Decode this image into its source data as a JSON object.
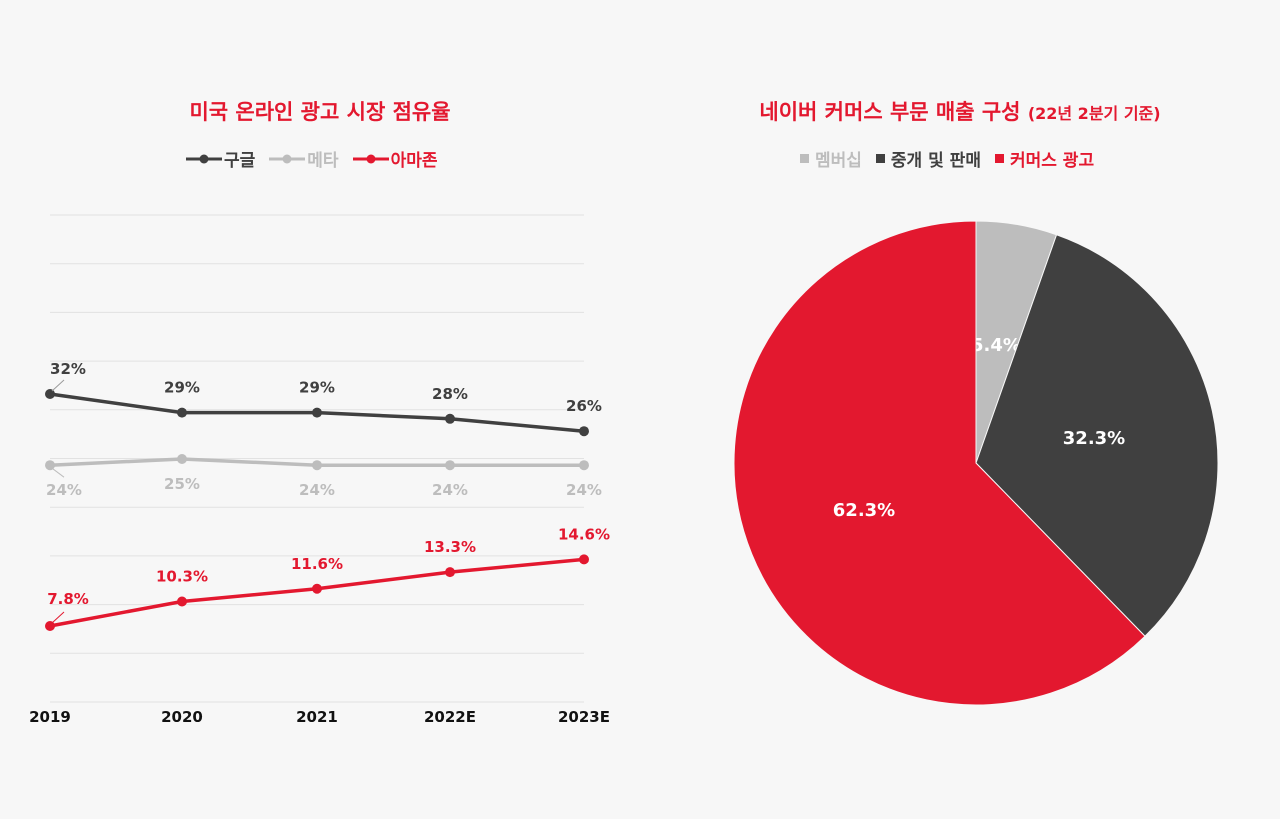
{
  "chart_data": [
    {
      "type": "line",
      "title": "미국 온라인 광고 시장 점유율",
      "categories": [
        "2019",
        "2020",
        "2021",
        "2022E",
        "2023E"
      ],
      "series": [
        {
          "name": "구글",
          "color": "#404040",
          "values": [
            32,
            29,
            29,
            28,
            26
          ],
          "labels": [
            "32%",
            "29%",
            "29%",
            "28%",
            "26%"
          ]
        },
        {
          "name": "메타",
          "color": "#bdbdbd",
          "values": [
            24,
            25,
            24,
            24,
            24
          ],
          "labels": [
            "24%",
            "25%",
            "24%",
            "24%",
            "24%"
          ]
        },
        {
          "name": "아마존",
          "color": "#e3182f",
          "values": [
            7.8,
            10.3,
            11.6,
            13.3,
            14.6
          ],
          "labels": [
            "7.8%",
            "10.3%",
            "11.6%",
            "13.3%",
            "14.6%"
          ]
        }
      ],
      "legend_position": "top-center",
      "grid": true
    },
    {
      "type": "pie",
      "title": "네이버 커머스 부문 매출 구성",
      "subtitle": "(22년 2분기 기준)",
      "slices": [
        {
          "name": "멤버십",
          "value": 5.4,
          "label": "5.4%",
          "color": "#bdbdbd"
        },
        {
          "name": "중개 및 판매",
          "value": 32.3,
          "label": "32.3%",
          "color": "#404040"
        },
        {
          "name": "커머스 광고",
          "value": 62.3,
          "label": "62.3%",
          "color": "#e3182f"
        }
      ],
      "legend_position": "top-center"
    }
  ]
}
